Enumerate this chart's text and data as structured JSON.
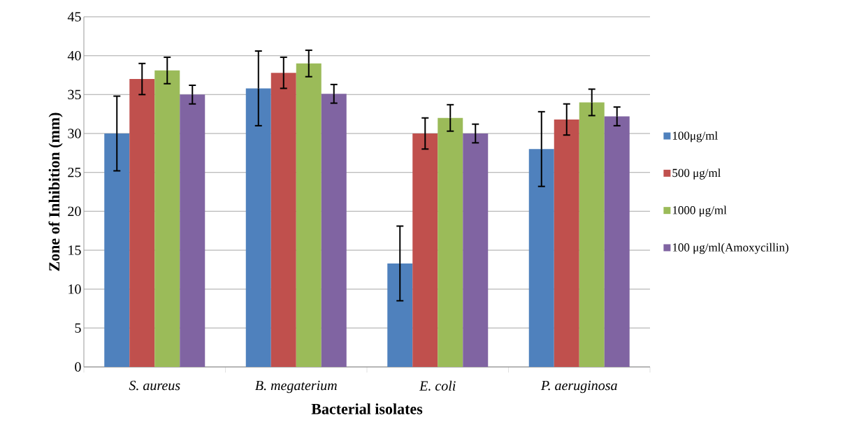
{
  "chart_data": {
    "type": "bar",
    "xlabel": "Bacterial isolates",
    "ylabel": "Zone of Inhibition (mm)",
    "categories": [
      "S. aureus",
      "B. megaterium",
      "E. coli",
      "P. aeruginosa"
    ],
    "series": [
      {
        "name": "100μg/ml",
        "color": "#4f81bd",
        "values": [
          30,
          35.8,
          13.3,
          28
        ],
        "errors": [
          4.8,
          4.8,
          4.8,
          4.8
        ]
      },
      {
        "name": "500 μg/ml",
        "color": "#c0504d",
        "values": [
          37,
          37.8,
          30,
          31.8
        ],
        "errors": [
          2,
          2,
          2,
          2
        ]
      },
      {
        "name": "1000 μg/ml",
        "color": "#9bbb59",
        "values": [
          38.1,
          39,
          32,
          34
        ],
        "errors": [
          1.7,
          1.7,
          1.7,
          1.7
        ]
      },
      {
        "name": "100 μg/ml(Amoxycillin)",
        "color": "#8064a2",
        "values": [
          35,
          35.1,
          30,
          32.2
        ],
        "errors": [
          1.2,
          1.2,
          1.2,
          1.2
        ]
      }
    ],
    "ylim": [
      0,
      45
    ],
    "yticks": [
      0,
      5,
      10,
      15,
      20,
      25,
      30,
      35,
      40,
      45
    ],
    "grid": "y",
    "legend": "right"
  }
}
